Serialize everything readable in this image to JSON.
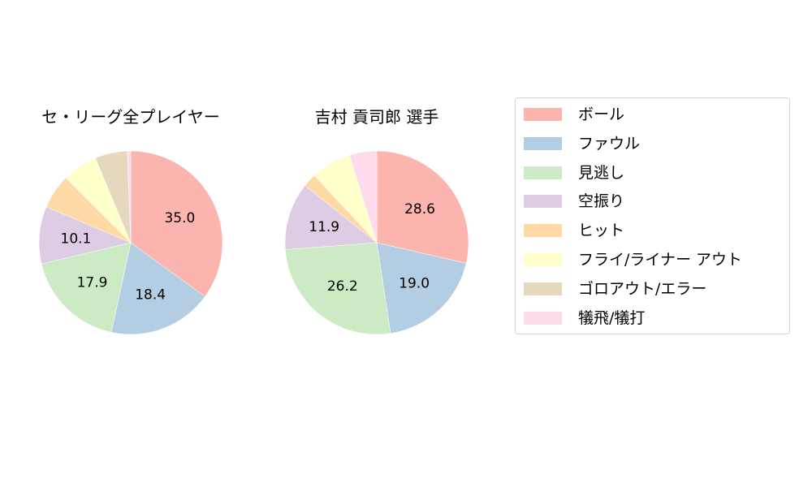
{
  "chart_data": [
    {
      "type": "pie",
      "title": "セ・リーグ全プレイヤー",
      "categories": [
        "ボール",
        "ファウル",
        "見逃し",
        "空振り",
        "ヒット",
        "フライ/ライナー アウト",
        "ゴロアウト/エラー",
        "犠飛/犠打"
      ],
      "values": [
        35.0,
        18.4,
        17.9,
        10.1,
        6.1,
        6.2,
        5.7,
        0.6
      ],
      "labels_shown": [
        "35.0",
        "18.4",
        "17.9",
        "10.1",
        "",
        "",
        "",
        ""
      ],
      "start_angle": 90,
      "direction": "clockwise"
    },
    {
      "type": "pie",
      "title": "吉村 貢司郎  選手",
      "categories": [
        "ボール",
        "ファウル",
        "見逃し",
        "空振り",
        "ヒット",
        "フライ/ライナー アウト",
        "ゴロアウト/エラー",
        "犠飛/犠打"
      ],
      "values": [
        28.6,
        19.0,
        26.2,
        11.9,
        2.4,
        7.1,
        0.0,
        4.8
      ],
      "labels_shown": [
        "28.6",
        "19.0",
        "26.2",
        "11.9",
        "",
        "",
        "",
        ""
      ],
      "start_angle": 90,
      "direction": "clockwise"
    }
  ],
  "titles": {
    "left": "セ・リーグ全プレイヤー",
    "right": "吉村 貢司郎  選手"
  },
  "legend": {
    "position": "right",
    "items": [
      {
        "label": "ボール",
        "color": "#fbb4ae"
      },
      {
        "label": "ファウル",
        "color": "#b3cde3"
      },
      {
        "label": "見逃し",
        "color": "#ccebc5"
      },
      {
        "label": "空振り",
        "color": "#decbe4"
      },
      {
        "label": "ヒット",
        "color": "#fed9a6"
      },
      {
        "label": "フライ/ライナー アウト",
        "color": "#ffffcc"
      },
      {
        "label": "ゴロアウト/エラー",
        "color": "#e5d8bd"
      },
      {
        "label": "犠飛/犠打",
        "color": "#fddaec"
      }
    ]
  },
  "colors": [
    "#fbb4ae",
    "#b3cde3",
    "#ccebc5",
    "#decbe4",
    "#fed9a6",
    "#ffffcc",
    "#e5d8bd",
    "#fddaec"
  ]
}
